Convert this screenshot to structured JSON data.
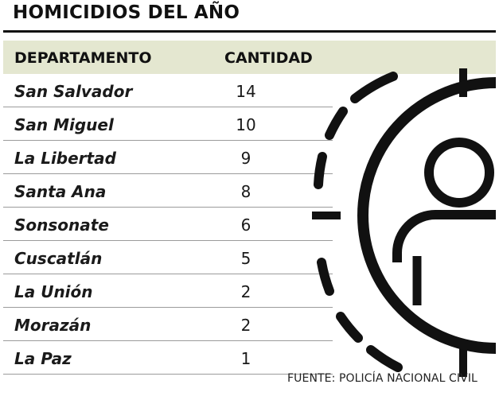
{
  "title": "HOMICIDIOS DEL AÑO",
  "header": {
    "departamento": "DEPARTAMENTO",
    "cantidad": "CANTIDAD"
  },
  "source": "FUENTE: POLICÍA NACIONAL CIVIL",
  "icon": "target-person-icon",
  "colors": {
    "header_bg": "#e4e7d0",
    "ink": "#111111",
    "row_line": "#9b9b9b"
  },
  "chart_data": {
    "type": "table",
    "title": "HOMICIDIOS DEL AÑO",
    "columns": [
      "DEPARTAMENTO",
      "CANTIDAD"
    ],
    "rows": [
      {
        "departamento": "San Salvador",
        "cantidad": "14"
      },
      {
        "departamento": "San Miguel",
        "cantidad": "10"
      },
      {
        "departamento": "La Libertad",
        "cantidad": "9"
      },
      {
        "departamento": "Santa Ana",
        "cantidad": "8"
      },
      {
        "departamento": "Sonsonate",
        "cantidad": "6"
      },
      {
        "departamento": "Cuscatlán",
        "cantidad": "5"
      },
      {
        "departamento": "La Unión",
        "cantidad": "2"
      },
      {
        "departamento": "Morazán",
        "cantidad": "2"
      },
      {
        "departamento": "La Paz",
        "cantidad": "1"
      }
    ],
    "source": "FUENTE: POLICÍA NACIONAL CIVIL"
  }
}
